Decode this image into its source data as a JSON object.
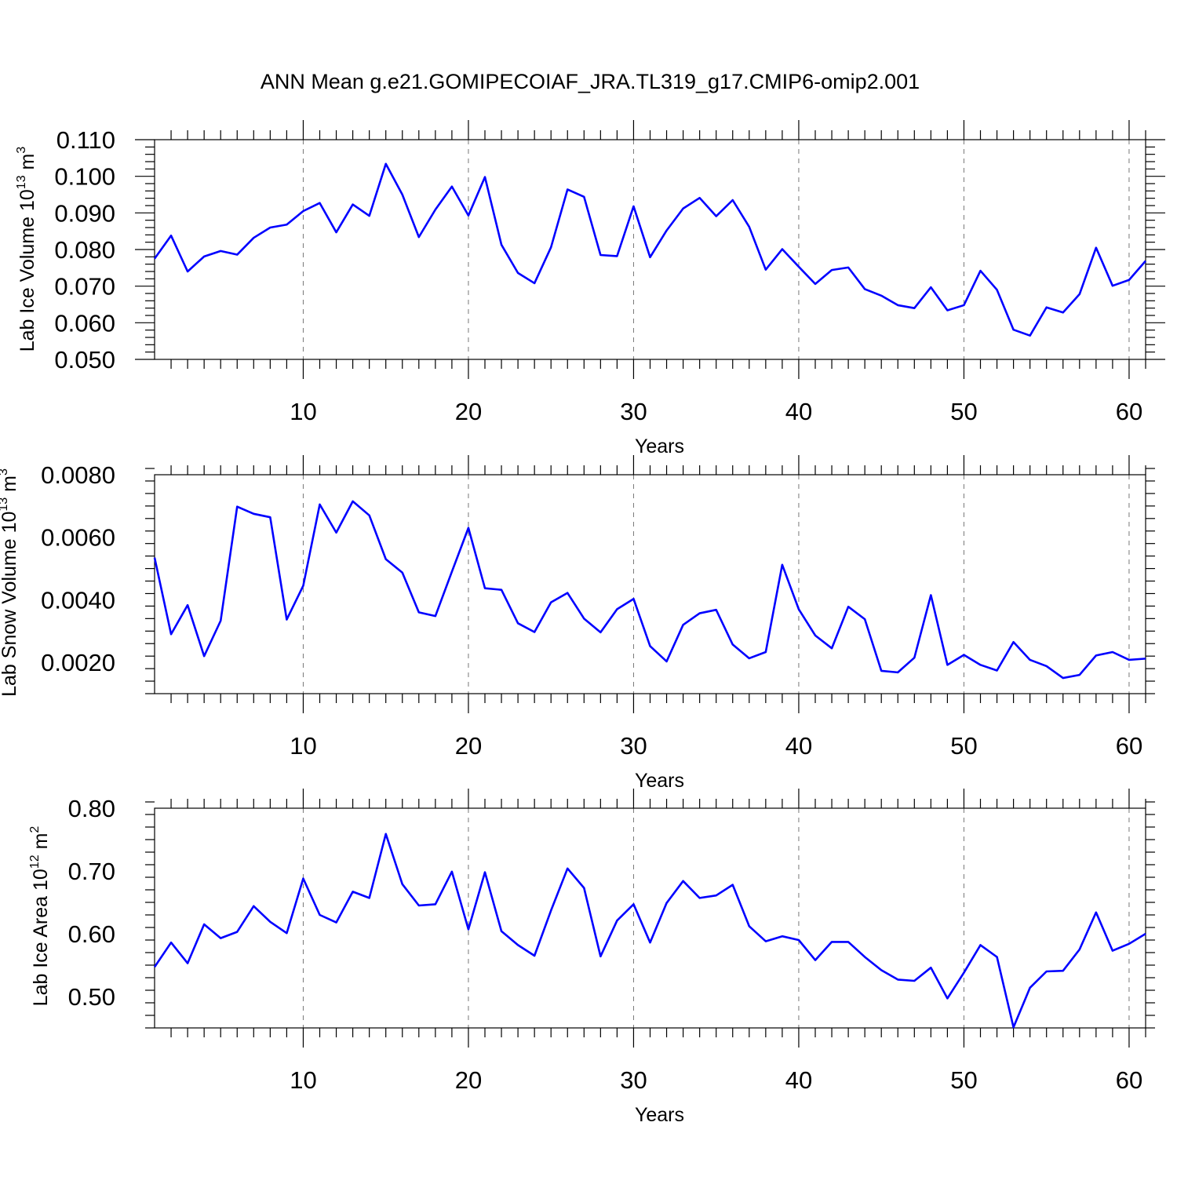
{
  "figure": {
    "title": "ANN Mean g.e21.GOMIPECOIAF_JRA.TL319_g17.CMIP6-omip2.001"
  },
  "colors": {
    "series": "#0000ff",
    "axes": "#000000",
    "grid": "#777777"
  },
  "chart_data": [
    {
      "type": "line",
      "title": "ANN Mean g.e21.GOMIPECOIAF_JRA.TL319_g17.CMIP6-omip2.001",
      "xlabel": "Years",
      "ylabel": {
        "text": "Lab Ice Volume 10",
        "sup": "13",
        "unit": " m",
        "unit_sup": "3"
      },
      "xlim": [
        1,
        61
      ],
      "ylim": [
        0.05,
        0.11
      ],
      "xticks": [
        10,
        20,
        30,
        40,
        50,
        60
      ],
      "xtick_labels": [
        "10",
        "20",
        "30",
        "40",
        "50",
        "60"
      ],
      "yticks": [
        0.05,
        0.06,
        0.07,
        0.08,
        0.09,
        0.1,
        0.11
      ],
      "ytick_labels": [
        "0.050",
        "0.060",
        "0.070",
        "0.080",
        "0.090",
        "0.100",
        "0.110"
      ],
      "grid": "vertical dashed at major x ticks",
      "x": [
        1,
        2,
        3,
        4,
        5,
        6,
        7,
        8,
        9,
        10,
        11,
        12,
        13,
        14,
        15,
        16,
        17,
        18,
        19,
        20,
        21,
        22,
        23,
        24,
        25,
        26,
        27,
        28,
        29,
        30,
        31,
        32,
        33,
        34,
        35,
        36,
        37,
        38,
        39,
        40,
        41,
        42,
        43,
        44,
        45,
        46,
        47,
        48,
        49,
        50,
        51,
        52,
        53,
        54,
        55,
        56,
        57,
        58,
        59,
        60,
        61
      ],
      "series": [
        {
          "values": [
            0.0775,
            0.0838,
            0.074,
            0.0781,
            0.0796,
            0.0786,
            0.0832,
            0.086,
            0.0868,
            0.0905,
            0.0927,
            0.0847,
            0.0923,
            0.0892,
            0.1034,
            0.095,
            0.0834,
            0.0909,
            0.0972,
            0.0893,
            0.0998,
            0.0813,
            0.0736,
            0.0708,
            0.0806,
            0.0964,
            0.0944,
            0.0785,
            0.0782,
            0.0918,
            0.0779,
            0.0852,
            0.0912,
            0.0941,
            0.0891,
            0.0935,
            0.0862,
            0.0745,
            0.0801,
            0.0753,
            0.0706,
            0.0744,
            0.0751,
            0.0692,
            0.0674,
            0.0648,
            0.064,
            0.0697,
            0.0634,
            0.0648,
            0.0742,
            0.069,
            0.0581,
            0.0565,
            0.0642,
            0.0628,
            0.0678,
            0.0805,
            0.0701,
            0.0717,
            0.0769
          ]
        }
      ]
    },
    {
      "type": "line",
      "xlabel": "Years",
      "ylabel": {
        "text": "Lab Snow Volume 10",
        "sup": "13",
        "unit": " m",
        "unit_sup": "3"
      },
      "xlim": [
        1,
        61
      ],
      "ylim": [
        0.001,
        0.008
      ],
      "xticks": [
        10,
        20,
        30,
        40,
        50,
        60
      ],
      "xtick_labels": [
        "10",
        "20",
        "30",
        "40",
        "50",
        "60"
      ],
      "yticks": [
        0.002,
        0.004,
        0.006,
        0.008
      ],
      "ytick_labels": [
        "0.0020",
        "0.0040",
        "0.0060",
        "0.0080"
      ],
      "grid": "vertical dashed at major x ticks",
      "x": [
        1,
        2,
        3,
        4,
        5,
        6,
        7,
        8,
        9,
        10,
        11,
        12,
        13,
        14,
        15,
        16,
        17,
        18,
        19,
        20,
        21,
        22,
        23,
        24,
        25,
        26,
        27,
        28,
        29,
        30,
        31,
        32,
        33,
        34,
        35,
        36,
        37,
        38,
        39,
        40,
        41,
        42,
        43,
        44,
        45,
        46,
        47,
        48,
        49,
        50,
        51,
        52,
        53,
        54,
        55,
        56,
        57,
        58,
        59,
        60,
        61
      ],
      "series": [
        {
          "values": [
            0.00535,
            0.0029,
            0.00383,
            0.0022,
            0.00333,
            0.00698,
            0.00675,
            0.00664,
            0.00337,
            0.00445,
            0.00705,
            0.00615,
            0.00715,
            0.0067,
            0.0053,
            0.00487,
            0.0036,
            0.00348,
            0.0049,
            0.0063,
            0.00437,
            0.00432,
            0.00325,
            0.00297,
            0.00392,
            0.00422,
            0.0034,
            0.00296,
            0.0037,
            0.00403,
            0.00252,
            0.00203,
            0.0032,
            0.00357,
            0.00368,
            0.00257,
            0.00213,
            0.00233,
            0.00512,
            0.0037,
            0.00286,
            0.00245,
            0.00378,
            0.00338,
            0.00173,
            0.00168,
            0.00215,
            0.00415,
            0.00192,
            0.00224,
            0.00192,
            0.00174,
            0.00265,
            0.00208,
            0.00188,
            0.0015,
            0.0016,
            0.00222,
            0.00233,
            0.00208,
            0.00212
          ]
        }
      ]
    },
    {
      "type": "line",
      "xlabel": "Years",
      "ylabel": {
        "text": "Lab Ice Area 10",
        "sup": "12",
        "unit": " m",
        "unit_sup": "2"
      },
      "xlim": [
        1,
        61
      ],
      "ylim": [
        0.45,
        0.8
      ],
      "xticks": [
        10,
        20,
        30,
        40,
        50,
        60
      ],
      "xtick_labels": [
        "10",
        "20",
        "30",
        "40",
        "50",
        "60"
      ],
      "yticks": [
        0.5,
        0.6,
        0.7,
        0.8
      ],
      "ytick_labels": [
        "0.50",
        "0.60",
        "0.70",
        "0.80"
      ],
      "grid": "vertical dashed at major x ticks",
      "x": [
        1,
        2,
        3,
        4,
        5,
        6,
        7,
        8,
        9,
        10,
        11,
        12,
        13,
        14,
        15,
        16,
        17,
        18,
        19,
        20,
        21,
        22,
        23,
        24,
        25,
        26,
        27,
        28,
        29,
        30,
        31,
        32,
        33,
        34,
        35,
        36,
        37,
        38,
        39,
        40,
        41,
        42,
        43,
        44,
        45,
        46,
        47,
        48,
        49,
        50,
        51,
        52,
        53,
        54,
        55,
        56,
        57,
        58,
        59,
        60,
        61
      ],
      "series": [
        {
          "values": [
            0.547,
            0.586,
            0.553,
            0.615,
            0.593,
            0.603,
            0.644,
            0.619,
            0.601,
            0.688,
            0.63,
            0.618,
            0.667,
            0.657,
            0.759,
            0.679,
            0.645,
            0.647,
            0.699,
            0.607,
            0.698,
            0.604,
            0.582,
            0.565,
            0.637,
            0.704,
            0.673,
            0.564,
            0.621,
            0.647,
            0.586,
            0.649,
            0.684,
            0.657,
            0.661,
            0.678,
            0.612,
            0.588,
            0.596,
            0.59,
            0.558,
            0.587,
            0.587,
            0.563,
            0.542,
            0.527,
            0.525,
            0.546,
            0.497,
            0.538,
            0.582,
            0.563,
            0.451,
            0.514,
            0.54,
            0.541,
            0.575,
            0.634,
            0.573,
            0.584,
            0.6
          ]
        }
      ]
    }
  ]
}
